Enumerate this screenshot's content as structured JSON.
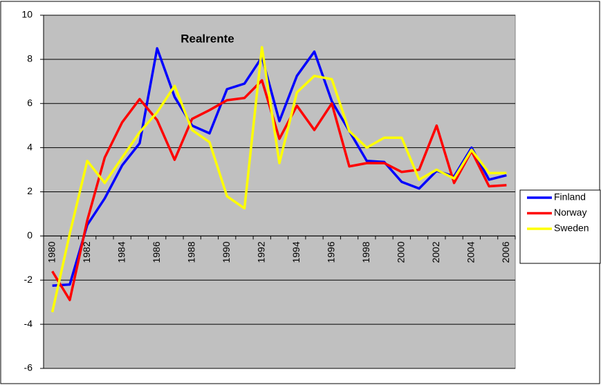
{
  "chart_data": {
    "type": "line",
    "title": "Realrente",
    "categories": [
      "1980",
      null,
      "1982",
      null,
      "1984",
      null,
      "1986",
      null,
      "1988",
      null,
      "1990",
      null,
      "1992",
      null,
      "1994",
      null,
      "1996",
      null,
      "1998",
      null,
      "2000",
      null,
      "2002",
      null,
      "2004",
      null,
      "2006"
    ],
    "series": [
      {
        "name": "Finland",
        "color": "#0000ff",
        "values": [
          -2.25,
          -2.2,
          0.5,
          1.7,
          3.2,
          4.2,
          8.5,
          6.3,
          5.0,
          4.65,
          6.65,
          6.9,
          8.1,
          5.2,
          7.25,
          8.35,
          6.1,
          4.75,
          3.4,
          3.35,
          2.45,
          2.15,
          2.95,
          2.7,
          4.0,
          2.55,
          2.75
        ]
      },
      {
        "name": "Norway",
        "color": "#ff0000",
        "values": [
          -1.6,
          -2.9,
          0.7,
          3.55,
          5.15,
          6.2,
          5.25,
          3.45,
          5.3,
          5.7,
          6.15,
          6.25,
          7.05,
          4.4,
          5.9,
          4.8,
          6.0,
          3.15,
          3.3,
          3.3,
          2.9,
          3.0,
          5.0,
          2.4,
          3.85,
          2.25,
          2.3
        ]
      },
      {
        "name": "Sweden",
        "color": "#ffff00",
        "values": [
          -3.45,
          0.1,
          3.4,
          2.4,
          3.55,
          4.7,
          5.6,
          6.8,
          4.8,
          4.25,
          1.8,
          1.25,
          8.55,
          3.3,
          6.5,
          7.25,
          7.1,
          4.75,
          4.0,
          4.45,
          4.45,
          2.55,
          3.0,
          2.6,
          3.9,
          2.85,
          2.85
        ]
      }
    ],
    "ylim": [
      -6,
      10
    ],
    "yticks": [
      -6,
      -4,
      -2,
      0,
      2,
      4,
      6,
      8,
      10
    ],
    "grid": true,
    "plot_background": "#c0c0c0",
    "legend": "right"
  }
}
